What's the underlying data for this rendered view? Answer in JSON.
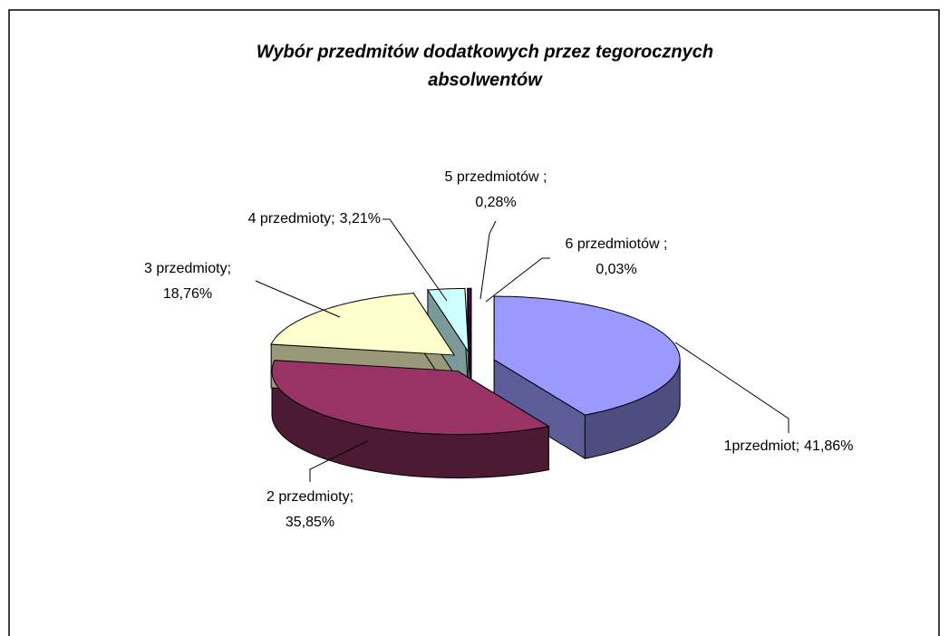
{
  "chart_data": {
    "type": "pie",
    "title": [
      "Wybór przedmitów dodatkowych przez tegorocznych",
      "absolwentów"
    ],
    "categories": [
      "1przedmiot;",
      "2 przedmioty;",
      "3 przedmioty;",
      "4 przedmioty;",
      "5 przedmiotów ;",
      "6 przedmiotów ;"
    ],
    "values": [
      41.86,
      35.85,
      18.76,
      3.21,
      0.28,
      0.03
    ],
    "value_labels": [
      "41,86%",
      "35,85%",
      "18,76%",
      "3,21%",
      "0,28%",
      "0,03%"
    ],
    "colors": [
      "#9999ff",
      "#993366",
      "#ffffcc",
      "#ccffff",
      "#660066",
      "#ff8080"
    ]
  }
}
